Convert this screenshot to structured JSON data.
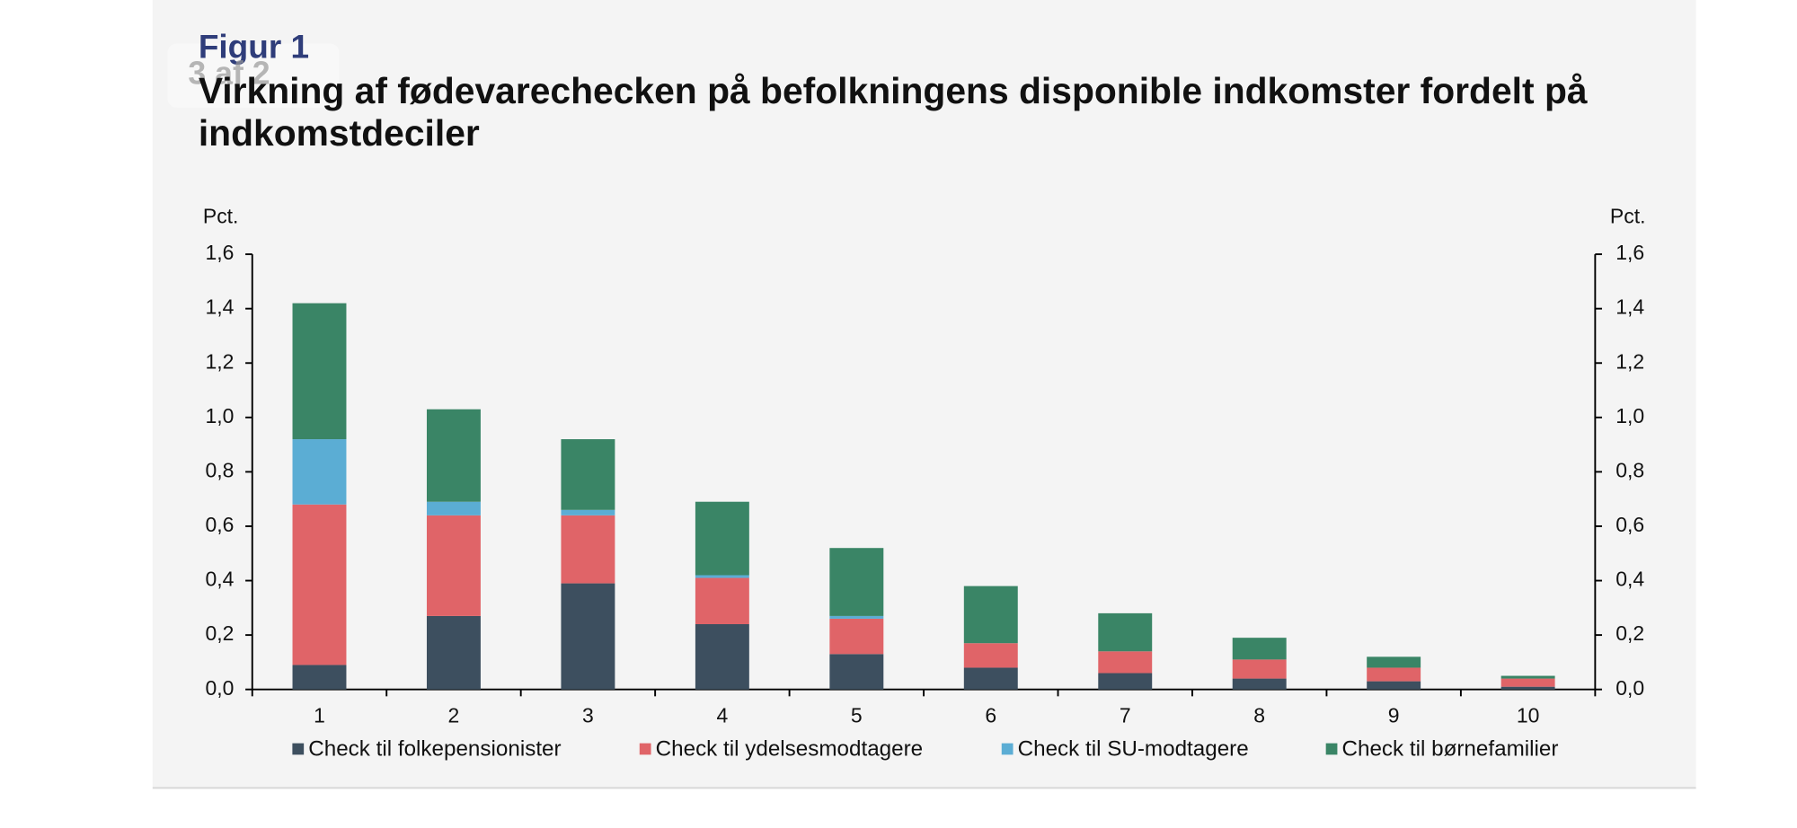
{
  "page_indicator": "3 af 2",
  "figure_label": "Figur 1",
  "chart_data": {
    "type": "stacked-bar",
    "title": "Virkning af fødevarechecken på befolkningens disponible indkomster fordelt på indkomstdeciler",
    "y_label": "Pct.",
    "y2_label": "Pct.",
    "categories": [
      "1",
      "2",
      "3",
      "4",
      "5",
      "6",
      "7",
      "8",
      "9",
      "10"
    ],
    "series": [
      {
        "name": "Check til folkepensionister",
        "color": "#3d4f5f",
        "values": [
          0.09,
          0.27,
          0.39,
          0.24,
          0.13,
          0.08,
          0.06,
          0.04,
          0.03,
          0.01
        ]
      },
      {
        "name": "Check til ydelsesmodtagere",
        "color": "#e06468",
        "values": [
          0.59,
          0.37,
          0.25,
          0.17,
          0.13,
          0.09,
          0.08,
          0.07,
          0.05,
          0.03
        ]
      },
      {
        "name": "Check til SU-modtagere",
        "color": "#5badd4",
        "values": [
          0.24,
          0.05,
          0.02,
          0.01,
          0.01,
          0,
          0,
          0,
          0,
          0
        ]
      },
      {
        "name": "Check til børnefamilier",
        "color": "#3a8566",
        "values": [
          0.5,
          0.34,
          0.26,
          0.27,
          0.25,
          0.21,
          0.14,
          0.08,
          0.04,
          0.01
        ]
      }
    ],
    "ylim": [
      0,
      1.6
    ],
    "yticks": [
      {
        "value": 0,
        "label": "0,0"
      },
      {
        "value": 0.2,
        "label": "0,2"
      },
      {
        "value": 0.4,
        "label": "0,4"
      },
      {
        "value": 0.6,
        "label": "0,6"
      },
      {
        "value": 0.8,
        "label": "0,8"
      },
      {
        "value": 1.0,
        "label": "1,0"
      },
      {
        "value": 1.2,
        "label": "1,2"
      },
      {
        "value": 1.4,
        "label": "1,4"
      },
      {
        "value": 1.6,
        "label": "1,6"
      }
    ],
    "y2lim": [
      0,
      1.6
    ],
    "y2ticks": [
      {
        "value": 0,
        "label": "0,0"
      },
      {
        "value": 0.2,
        "label": "0,2"
      },
      {
        "value": 0.4,
        "label": "0,4"
      },
      {
        "value": 0.6,
        "label": "0,6"
      },
      {
        "value": 0.8,
        "label": "0,8"
      },
      {
        "value": 1.0,
        "label": "1,0"
      },
      {
        "value": 1.2,
        "label": "1,2"
      },
      {
        "value": 1.4,
        "label": "1,4"
      },
      {
        "value": 1.6,
        "label": "1,6"
      }
    ],
    "grid": false,
    "legend": "bottom"
  }
}
